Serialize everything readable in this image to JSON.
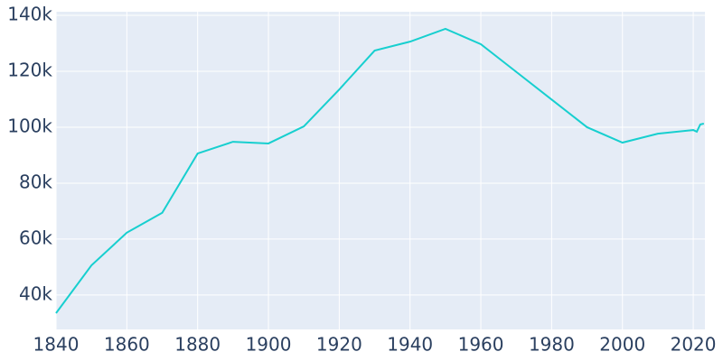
{
  "chart_data": {
    "type": "line",
    "x": [
      1840,
      1850,
      1860,
      1870,
      1880,
      1890,
      1900,
      1910,
      1920,
      1930,
      1940,
      1950,
      1960,
      1970,
      1980,
      1990,
      2000,
      2010,
      2020,
      2021,
      2022,
      2023
    ],
    "values": [
      33500,
      50600,
      62300,
      69400,
      90600,
      94800,
      94200,
      100300,
      113500,
      127400,
      130600,
      135200,
      129700,
      119800,
      109900,
      100000,
      94500,
      97700,
      99000,
      98400,
      101000,
      101300
    ],
    "color": "#17cfcf",
    "xlim": [
      1840,
      2023.3
    ],
    "ylim": [
      27700,
      141300
    ],
    "xticks": [
      1840,
      1860,
      1880,
      1900,
      1920,
      1940,
      1960,
      1980,
      2000,
      2020
    ],
    "yticks": [
      {
        "value": 40000,
        "label": "40k"
      },
      {
        "value": 60000,
        "label": "60k"
      },
      {
        "value": 80000,
        "label": "80k"
      },
      {
        "value": 100000,
        "label": "100k"
      },
      {
        "value": 120000,
        "label": "120k"
      },
      {
        "value": 140000,
        "label": "140k"
      }
    ],
    "grid": true
  }
}
